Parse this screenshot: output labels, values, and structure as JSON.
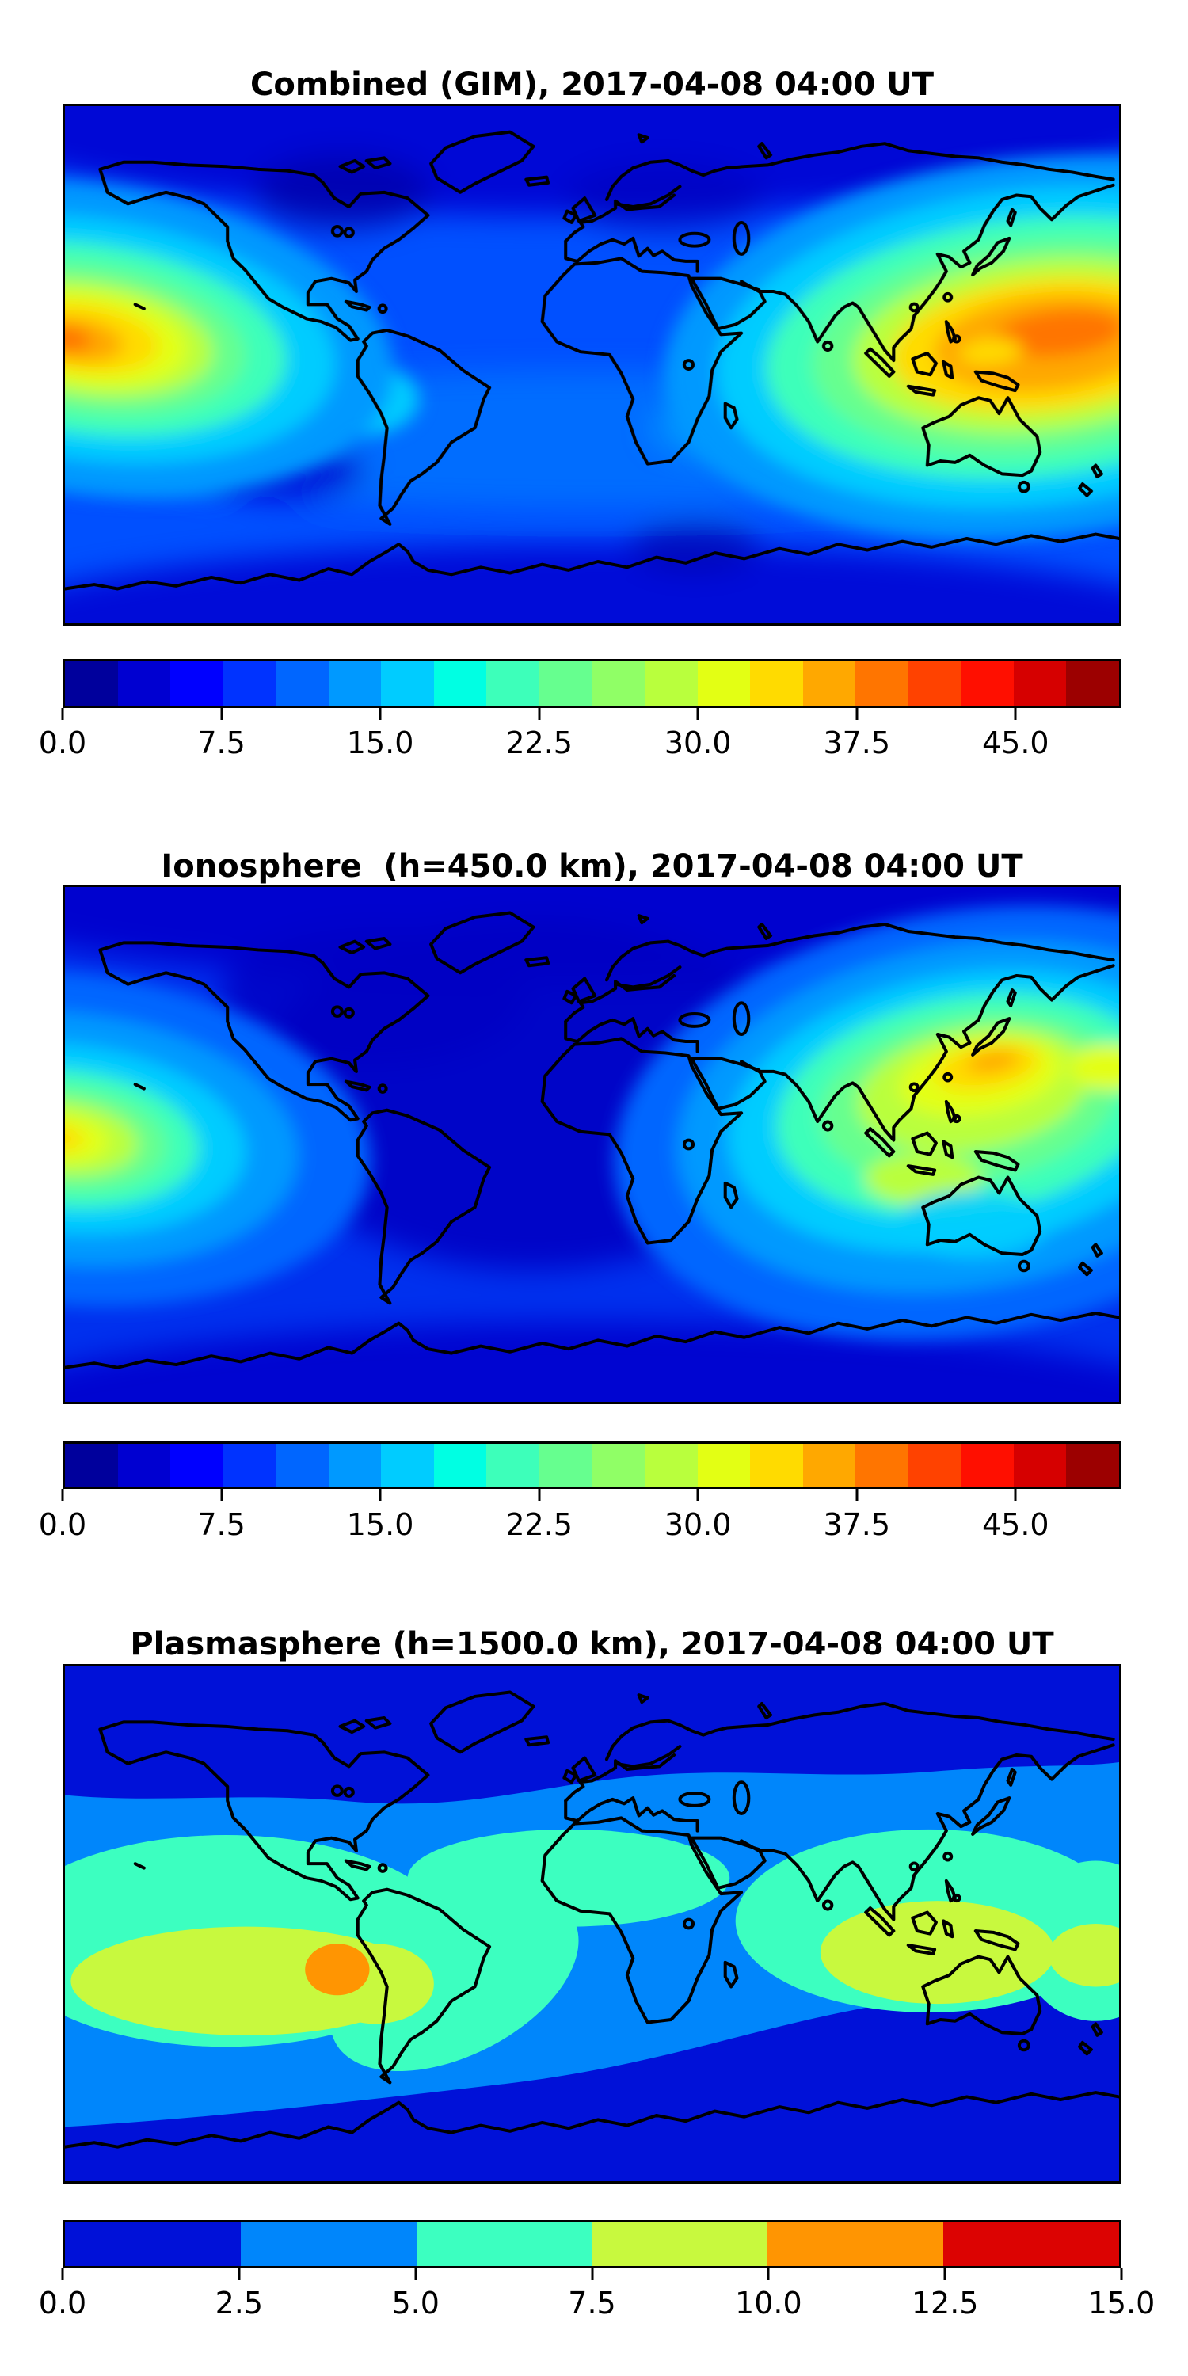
{
  "figure": {
    "background": "#ffffff",
    "panels": [
      {
        "id": "combined",
        "title": "Combined (GIM), 2017-04-08 04:00 UT",
        "colorbar": {
          "orientation": "horizontal",
          "range": [
            0,
            50
          ],
          "n_levels": 20,
          "tick_values": [
            0,
            7.5,
            15,
            22.5,
            30,
            37.5,
            45
          ],
          "tick_labels": [
            "0.0",
            "7.5",
            "15.0",
            "22.5",
            "30.0",
            "37.5",
            "45.0"
          ],
          "segment_colors": [
            "#00009c",
            "#0000d1",
            "#0000ff",
            "#0033ff",
            "#0066ff",
            "#0099ff",
            "#00ccff",
            "#00ffe3",
            "#3dffba",
            "#66ff8f",
            "#90ff66",
            "#b9ff3d",
            "#e3ff14",
            "#ffdb00",
            "#ffa800",
            "#ff7500",
            "#ff4200",
            "#ff0f00",
            "#d60000",
            "#9c0000"
          ]
        }
      },
      {
        "id": "ionosphere",
        "title": "Ionosphere  (h=450.0 km), 2017-04-08 04:00 UT",
        "colorbar": {
          "orientation": "horizontal",
          "range": [
            0,
            50
          ],
          "n_levels": 20,
          "tick_values": [
            0,
            7.5,
            15,
            22.5,
            30,
            37.5,
            45
          ],
          "tick_labels": [
            "0.0",
            "7.5",
            "15.0",
            "22.5",
            "30.0",
            "37.5",
            "45.0"
          ],
          "segment_colors": [
            "#00009c",
            "#0000d1",
            "#0000ff",
            "#0033ff",
            "#0066ff",
            "#0099ff",
            "#00ccff",
            "#00ffe3",
            "#3dffba",
            "#66ff8f",
            "#90ff66",
            "#b9ff3d",
            "#e3ff14",
            "#ffdb00",
            "#ffa800",
            "#ff7500",
            "#ff4200",
            "#ff0f00",
            "#d60000",
            "#9c0000"
          ]
        }
      },
      {
        "id": "plasmasphere",
        "title": "Plasmasphere (h=1500.0 km), 2017-04-08 04:00 UT",
        "colorbar": {
          "orientation": "horizontal",
          "range": [
            0,
            15
          ],
          "n_levels": 6,
          "tick_values": [
            0,
            2.5,
            5,
            7.5,
            10,
            12.5,
            15
          ],
          "tick_labels": [
            "0.0",
            "2.5",
            "5.0",
            "7.5",
            "10.0",
            "12.5",
            "15.0"
          ],
          "segment_colors": [
            "#0011d8",
            "#0086fb",
            "#3cffc0",
            "#c8f93e",
            "#ff9502",
            "#dc0302"
          ]
        }
      }
    ]
  },
  "chart_data": [
    {
      "type": "heatmap",
      "subtype": "filled-contour world map with coastlines",
      "title": "Combined (GIM), 2017-04-08 04:00 UT",
      "layer": "Combined (GIM)",
      "date": "2017-04-08",
      "time_ut": "04:00",
      "projection": "equirectangular",
      "lon_range": [
        -180,
        180
      ],
      "lat_range": [
        -90,
        90
      ],
      "colormap": "jet (discrete)",
      "value_range": [
        0,
        50
      ],
      "colorbar_ticks": [
        0,
        7.5,
        15,
        22.5,
        30,
        37.5,
        45
      ],
      "legend_position": "below map, horizontal",
      "grid": false,
      "features": [
        {
          "name": "equatorial anomaly maximum over East Asia / western Pacific",
          "lon": 140,
          "lat": 10,
          "peak_value": 40
        },
        {
          "name": "same anomaly wrapping the left (date-line) edge, central Pacific",
          "lon": -172,
          "lat": 8,
          "peak_value": 37
        },
        {
          "name": "cyan patch over South America (Peru/Brazil)",
          "lon": -75,
          "lat": -12,
          "value": 17
        },
        {
          "name": "dark minimum over northern Canada and northern Europe",
          "value": 3
        },
        {
          "name": "dark minimum band along Antarctica",
          "value": 4
        },
        {
          "name": "background mid-latitude oceans",
          "value": 8
        }
      ]
    },
    {
      "type": "heatmap",
      "subtype": "filled-contour world map with coastlines",
      "title": "Ionosphere  (h=450.0 km), 2017-04-08 04:00 UT",
      "layer": "Ionosphere",
      "height_km": 450.0,
      "date": "2017-04-08",
      "time_ut": "04:00",
      "projection": "equirectangular",
      "lon_range": [
        -180,
        180
      ],
      "lat_range": [
        -90,
        90
      ],
      "colormap": "jet (discrete)",
      "value_range": [
        0,
        50
      ],
      "colorbar_ticks": [
        0,
        7.5,
        15,
        22.5,
        30,
        37.5,
        45
      ],
      "legend_position": "below map, horizontal",
      "grid": false,
      "features": [
        {
          "name": "maximum east of Taiwan / Philippine Sea (small orange core)",
          "lon": 138,
          "lat": 27,
          "peak_value": 35
        },
        {
          "name": "yellow-green secondary patch over Indonesia / New Guinea",
          "lon": 115,
          "lat": -12,
          "value": 28
        },
        {
          "name": "anomaly wrapping left edge, central Pacific",
          "lon": -178,
          "lat": 3,
          "peak_value": 32
        },
        {
          "name": "dark minimum over Atlantic, Africa and Europe",
          "value": 3
        },
        {
          "name": "background oceans",
          "value": 6
        }
      ]
    },
    {
      "type": "heatmap",
      "subtype": "filled-contour world map with coastlines",
      "title": "Plasmasphere (h=1500.0 km), 2017-04-08 04:00 UT",
      "layer": "Plasmasphere",
      "height_km": 1500.0,
      "date": "2017-04-08",
      "time_ut": "04:00",
      "projection": "equirectangular",
      "lon_range": [
        -180,
        180
      ],
      "lat_range": [
        -90,
        90
      ],
      "colormap": "jet (discrete)",
      "value_range": [
        0,
        15
      ],
      "colorbar_ticks": [
        0,
        2.5,
        5,
        7.5,
        10,
        12.5,
        15
      ],
      "legend_position": "below map, horizontal",
      "grid": false,
      "features": [
        {
          "name": "polar caps (north band and Antarctic region)",
          "value_band": "0-2.5"
        },
        {
          "name": "mid-latitude bands",
          "value_band": "2.5-5"
        },
        {
          "name": "broad equatorial turquoise belt (two lobes: Americas/Pacific and Asia/Indian)",
          "value_band": "5-7.5"
        },
        {
          "name": "yellow-green lobe over eastern Pacific and South America",
          "lon": -115,
          "lat": -20,
          "value_band": "7.5-10"
        },
        {
          "name": "yellow-green lobe over maritime continent / SE Asia",
          "lon": 118,
          "lat": -10,
          "value_band": "7.5-10"
        },
        {
          "name": "orange peak near Peru",
          "lon": -87,
          "lat": -16,
          "value_band": "10-12.5"
        }
      ]
    }
  ]
}
